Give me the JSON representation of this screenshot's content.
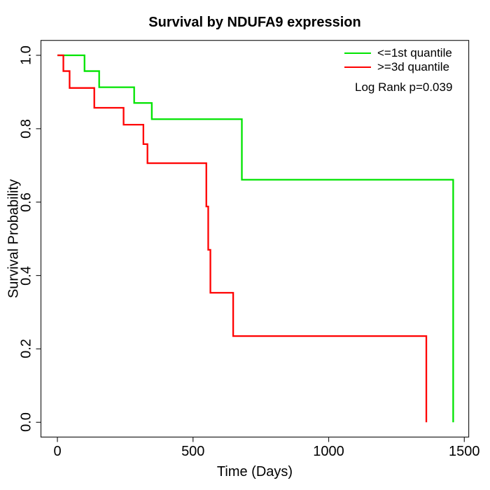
{
  "title": "Survival by NDUFA9 expression",
  "chart_data": {
    "type": "line",
    "subtype": "kaplan-meier-step",
    "title": "Survival by NDUFA9 expression",
    "xlabel": "Time (Days)",
    "ylabel": "Survival Probability",
    "xlim": [
      0,
      1500
    ],
    "ylim": [
      0.0,
      1.0
    ],
    "grid": false,
    "legend_position": "top-right-inside",
    "annotation": "Log Rank p=0.039",
    "x_ticks": [
      0,
      500,
      1000,
      1500
    ],
    "x_tick_labels": [
      "0",
      "500",
      "1000",
      "1500"
    ],
    "y_ticks": [
      0.0,
      0.2,
      0.4,
      0.6,
      0.8,
      1.0
    ],
    "y_tick_labels": [
      "0.0",
      "0.2",
      "0.4",
      "0.6",
      "0.8",
      "1.0"
    ],
    "axis_color": "#222222",
    "series": [
      {
        "name": "<=1st quantile",
        "color": "#00E400",
        "start": [
          0,
          1.0
        ],
        "events": [
          [
            100,
            0.957
          ],
          [
            154,
            0.913
          ],
          [
            283,
            0.87
          ],
          [
            348,
            0.826
          ],
          [
            680,
            0.661
          ],
          [
            1459,
            0.0
          ]
        ]
      },
      {
        "name": ">=3d quantile",
        "color": "#FF0000",
        "start": [
          0,
          1.0
        ],
        "events": [
          [
            22,
            0.957
          ],
          [
            45,
            0.911
          ],
          [
            136,
            0.857
          ],
          [
            244,
            0.811
          ],
          [
            317,
            0.758
          ],
          [
            332,
            0.706
          ],
          [
            549,
            0.588
          ],
          [
            556,
            0.47
          ],
          [
            564,
            0.353
          ],
          [
            648,
            0.235
          ],
          [
            1360,
            0.0
          ]
        ]
      }
    ]
  }
}
